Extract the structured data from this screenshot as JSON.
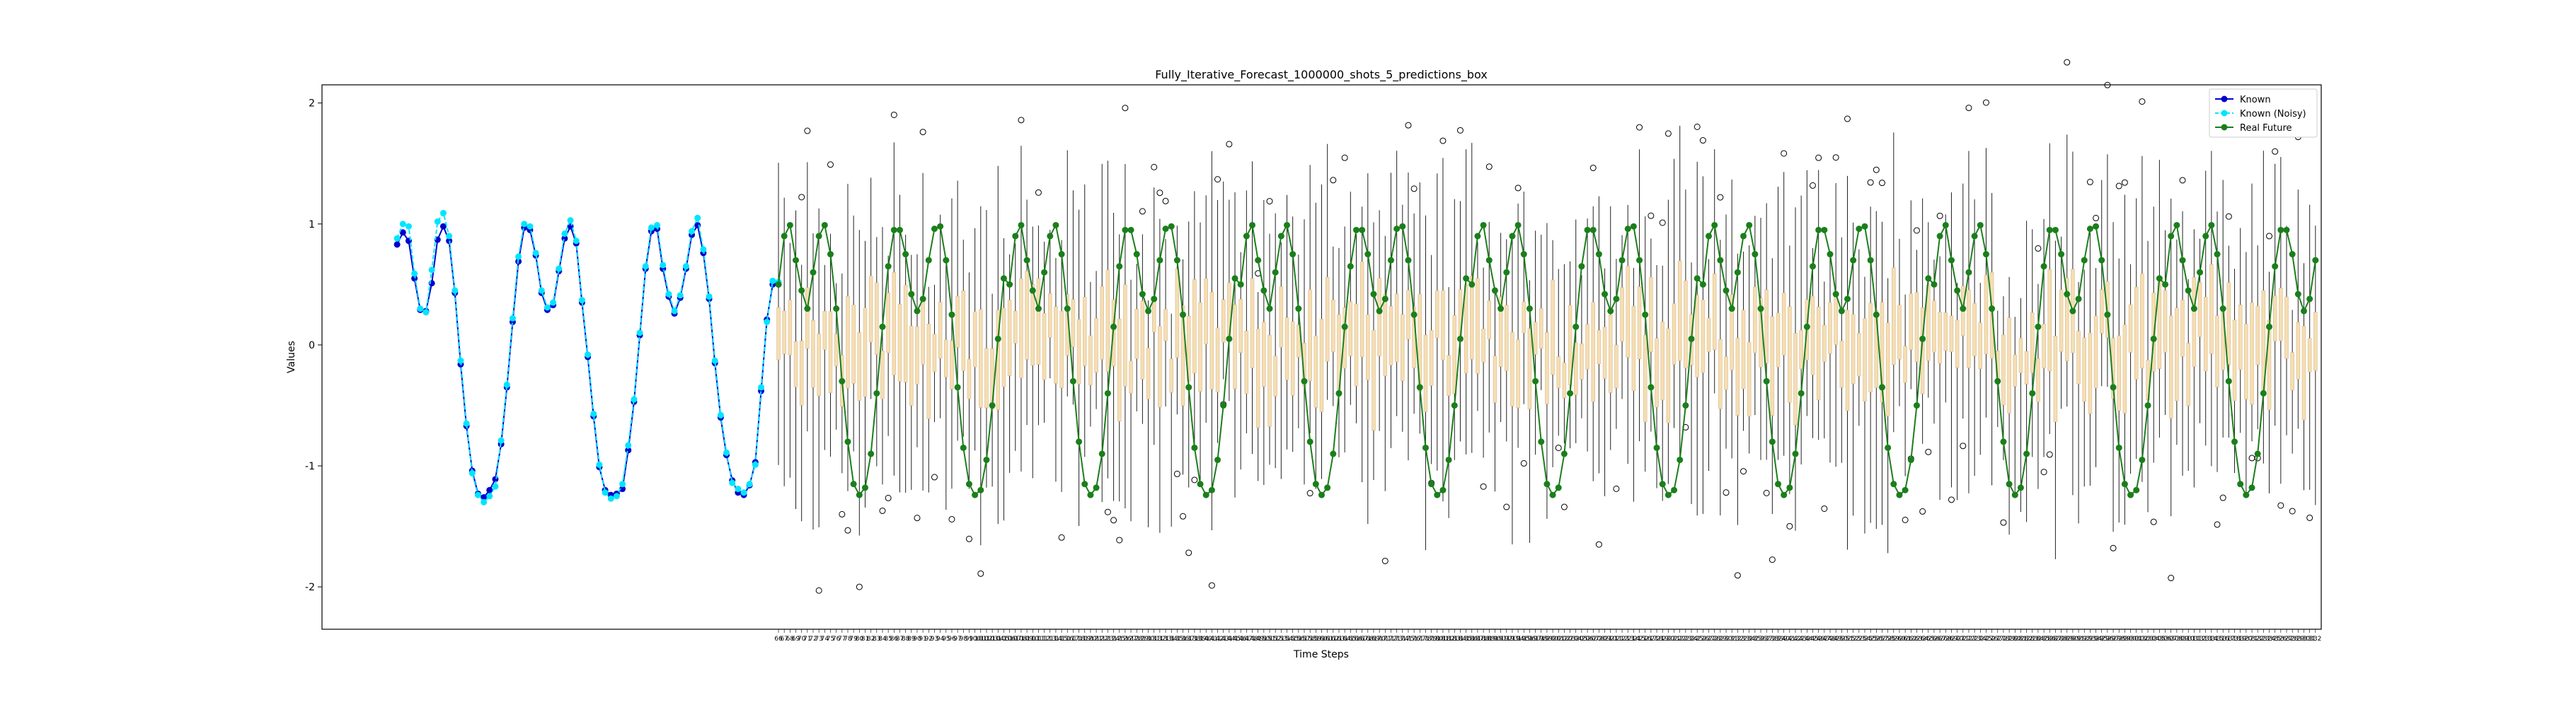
{
  "chart_data": {
    "type": "line",
    "title": "Fully_Iterative_Forecast_1000000_shots_5_predictions_box",
    "xlabel": "Time Steps",
    "ylabel": "Values",
    "ylim": [
      -2.35,
      2.15
    ],
    "yticks": [
      -2,
      -1,
      0,
      1,
      2
    ],
    "grid": false,
    "legend": {
      "position": "top-right",
      "entries": [
        "Known",
        "Known (Noisy)",
        "Real Future"
      ]
    },
    "known": {
      "name": "Known",
      "x_start": 0,
      "values": [
        0.83,
        0.93,
        0.86,
        0.55,
        0.29,
        0.28,
        0.51,
        0.87,
        0.98,
        0.86,
        0.43,
        -0.16,
        -0.67,
        -1.04,
        -1.23,
        -1.26,
        -1.2,
        -1.11,
        -0.82,
        -0.35,
        0.19,
        0.69,
        0.97,
        0.95,
        0.74,
        0.43,
        0.29,
        0.33,
        0.61,
        0.88,
        0.98,
        0.84,
        0.35,
        -0.1,
        -0.59,
        -1.01,
        -1.2,
        -1.24,
        -1.23,
        -1.19,
        -0.87,
        -0.47,
        0.08,
        0.63,
        0.94,
        0.96,
        0.63,
        0.4,
        0.26,
        0.39,
        0.63,
        0.91,
        0.99,
        0.76,
        0.38,
        -0.15,
        -0.6,
        -0.91,
        -1.12,
        -1.22,
        -1.24,
        -1.16,
        -0.97,
        -0.38,
        0.21,
        0.5,
        0.5
      ]
    },
    "known_noisy": {
      "name": "Known (Noisy)",
      "x_start": 0,
      "values": [
        0.88,
        1.0,
        0.98,
        0.59,
        0.3,
        0.27,
        0.62,
        1.02,
        1.09,
        0.9,
        0.45,
        -0.13,
        -0.65,
        -1.06,
        -1.24,
        -1.3,
        -1.25,
        -1.17,
        -0.79,
        -0.33,
        0.22,
        0.73,
        1.0,
        0.98,
        0.76,
        0.45,
        0.31,
        0.35,
        0.63,
        0.92,
        1.03,
        0.86,
        0.37,
        -0.08,
        -0.57,
        -0.99,
        -1.22,
        -1.27,
        -1.25,
        -1.15,
        -0.83,
        -0.45,
        0.1,
        0.65,
        0.97,
        0.99,
        0.66,
        0.42,
        0.28,
        0.41,
        0.65,
        0.94,
        1.05,
        0.79,
        0.4,
        -0.13,
        -0.58,
        -0.89,
        -1.14,
        -1.19,
        -1.22,
        -1.15,
        -0.99,
        -0.35,
        0.19,
        0.53,
        0.52
      ]
    },
    "real_future": {
      "name": "Real Future",
      "x_start": 66,
      "cycle": [
        0.5,
        0.9,
        0.99,
        0.7,
        0.45,
        0.3,
        0.6,
        0.9,
        0.99,
        0.75,
        0.3,
        -0.3,
        -0.8,
        -1.15,
        -1.24,
        -1.18,
        -0.9,
        -0.4,
        0.15,
        0.65,
        0.95,
        0.95,
        0.75,
        0.42,
        0.28,
        0.38,
        0.7,
        0.96,
        0.98,
        0.7,
        0.25,
        -0.35,
        -0.85,
        -1.15,
        -1.24,
        -1.2,
        -0.95,
        -0.5,
        0.05,
        0.55
      ],
      "count": 267
    },
    "predictions_box": {
      "description_of_encoding": "one box per future time step: q1, q3 box; whiskers to min/max; outlier circles",
      "count": 267
    },
    "xticks_first": 66,
    "xticks_last": 332
  },
  "colors": {
    "known": "#0000cc",
    "known_noisy": "#00e5ff",
    "real_future": "#1a7f1a",
    "box_fill": "#f5deb3",
    "box_edge": "#d8b98c",
    "whisker": "#222222"
  }
}
